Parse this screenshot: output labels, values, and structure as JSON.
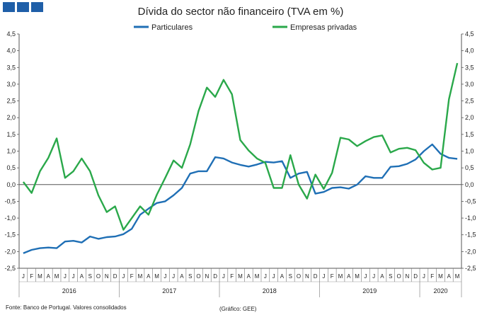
{
  "chart_data": {
    "type": "line",
    "title": "Dívida do sector não financeiro (TVA em %)",
    "xlabel": "",
    "ylabel": "",
    "ylim": [
      -2.5,
      4.5
    ],
    "yticks": [
      "4,5",
      "4,0",
      "3,5",
      "3,0",
      "2,5",
      "2,0",
      "1,5",
      "1,0",
      "0,5",
      "0,0",
      "-0,5",
      "-1,0",
      "-1,5",
      "-2,0",
      "-2,5"
    ],
    "months": [
      "J",
      "F",
      "M",
      "A",
      "M",
      "J",
      "J",
      "A",
      "S",
      "O",
      "N",
      "D",
      "J",
      "F",
      "M",
      "A",
      "M",
      "J",
      "J",
      "A",
      "S",
      "O",
      "N",
      "D",
      "J",
      "F",
      "M",
      "A",
      "M",
      "J",
      "J",
      "A",
      "S",
      "O",
      "N",
      "D",
      "J",
      "F",
      "M",
      "A",
      "M",
      "J",
      "J",
      "A",
      "S",
      "O",
      "N",
      "D",
      "J",
      "F",
      "M",
      "A",
      "M"
    ],
    "years": [
      "2016",
      "2017",
      "2018",
      "2019",
      "2020"
    ],
    "legend_position": "top",
    "series": [
      {
        "name": "Particulares",
        "color": "#1f6fb5",
        "values": [
          -2.05,
          -1.95,
          -1.9,
          -1.88,
          -1.9,
          -1.7,
          -1.68,
          -1.73,
          -1.55,
          -1.62,
          -1.57,
          -1.55,
          -1.48,
          -1.32,
          -0.9,
          -0.72,
          -0.55,
          -0.5,
          -0.32,
          -0.1,
          0.33,
          0.4,
          0.4,
          0.82,
          0.78,
          0.66,
          0.59,
          0.54,
          0.6,
          0.68,
          0.66,
          0.7,
          0.2,
          0.33,
          0.38,
          -0.27,
          -0.22,
          -0.1,
          -0.08,
          -0.12,
          0.0,
          0.25,
          0.2,
          0.2,
          0.53,
          0.55,
          0.62,
          0.75,
          1.0,
          1.2,
          0.92,
          0.8,
          0.77
        ]
      },
      {
        "name": "Empresas privadas",
        "color": "#2aa84a",
        "values": [
          0.08,
          -0.25,
          0.4,
          0.8,
          1.38,
          0.2,
          0.4,
          0.78,
          0.4,
          -0.32,
          -0.82,
          -0.65,
          -1.35,
          -1.0,
          -0.65,
          -0.9,
          -0.3,
          0.2,
          0.72,
          0.5,
          1.2,
          2.2,
          2.9,
          2.62,
          3.13,
          2.7,
          1.33,
          1.02,
          0.78,
          0.65,
          -0.1,
          -0.1,
          0.88,
          0.0,
          -0.42,
          0.3,
          -0.13,
          0.35,
          1.4,
          1.35,
          1.15,
          1.3,
          1.42,
          1.47,
          0.96,
          1.07,
          1.1,
          1.03,
          0.65,
          0.45,
          0.5,
          2.55,
          3.63
        ]
      }
    ],
    "grid": false
  },
  "footer": {
    "source": "Fonte: Banco de Portugal. Valores consolidados",
    "credit": "(Gráfico: GEE)"
  },
  "logo": {
    "color": "#1f5fa8"
  }
}
